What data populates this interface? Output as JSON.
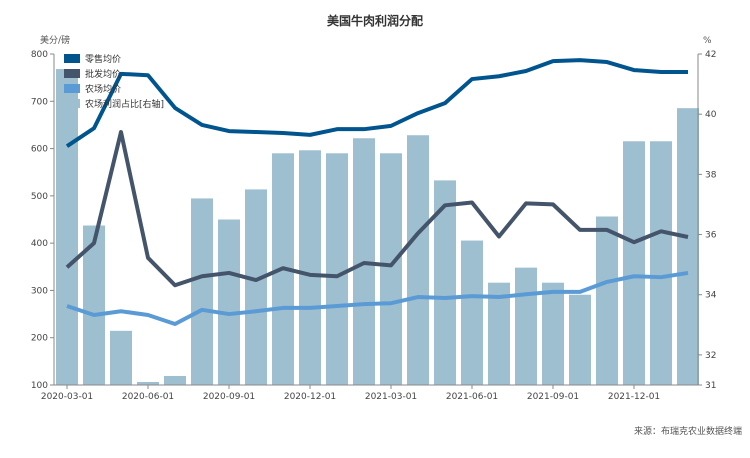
{
  "chart_data": {
    "type": "bar+line",
    "title": "美国牛肉利润分配",
    "ylabel_left": "美分/磅",
    "ylabel_right": "%",
    "ylim_left": [
      100,
      800
    ],
    "ylim_right": [
      31,
      42
    ],
    "yticks_left": [
      100,
      200,
      300,
      400,
      500,
      600,
      700,
      800
    ],
    "yticks_right": [
      31,
      32,
      34,
      36,
      38,
      40,
      42
    ],
    "xtick_labels": [
      "2020-03-01",
      "2020-06-01",
      "2020-09-01",
      "2020-12-01",
      "2021-03-01",
      "2021-06-01",
      "2021-09-01",
      "2021-12-01"
    ],
    "x": [
      "2020-03",
      "2020-04",
      "2020-05",
      "2020-06",
      "2020-07",
      "2020-08",
      "2020-09",
      "2020-10",
      "2020-11",
      "2020-12",
      "2021-01",
      "2021-02",
      "2021-03",
      "2021-04",
      "2021-05",
      "2021-06",
      "2021-07",
      "2021-08",
      "2021-09",
      "2021-10",
      "2021-11",
      "2021-12",
      "2022-01",
      "2022-02"
    ],
    "grid": false,
    "legend_position": "top-left",
    "series": [
      {
        "name": "零售均价",
        "type": "line",
        "axis": "left",
        "color": "#00558f",
        "values": [
          605,
          643,
          758,
          755,
          686,
          650,
          637,
          635,
          633,
          629,
          641,
          641,
          648,
          675,
          696,
          747,
          753,
          764,
          785,
          787,
          783,
          766,
          762,
          762
        ]
      },
      {
        "name": "批发均价",
        "type": "line",
        "axis": "left",
        "color": "#44546a",
        "values": [
          349,
          400,
          635,
          369,
          311,
          330,
          337,
          322,
          347,
          333,
          330,
          358,
          353,
          421,
          480,
          486,
          414,
          484,
          482,
          428,
          428,
          402,
          425,
          413
        ]
      },
      {
        "name": "农场均价",
        "type": "line",
        "axis": "left",
        "color": "#5b9bd5",
        "values": [
          267,
          248,
          256,
          248,
          229,
          259,
          250,
          256,
          263,
          263,
          267,
          271,
          273,
          286,
          284,
          288,
          286,
          292,
          297,
          297,
          318,
          330,
          328,
          337
        ]
      },
      {
        "name": "农场利润占比[右轴]",
        "type": "bar",
        "axis": "right",
        "color": "#9dbfd0",
        "values": [
          41.5,
          36.3,
          32.8,
          31.1,
          31.3,
          37.2,
          36.5,
          37.5,
          38.7,
          38.8,
          38.7,
          39.2,
          38.7,
          39.3,
          37.8,
          35.8,
          34.4,
          34.9,
          34.4,
          34.0,
          36.6,
          39.1,
          39.1,
          40.2
        ]
      }
    ],
    "source": "来源：布瑞克农业数据终端"
  }
}
